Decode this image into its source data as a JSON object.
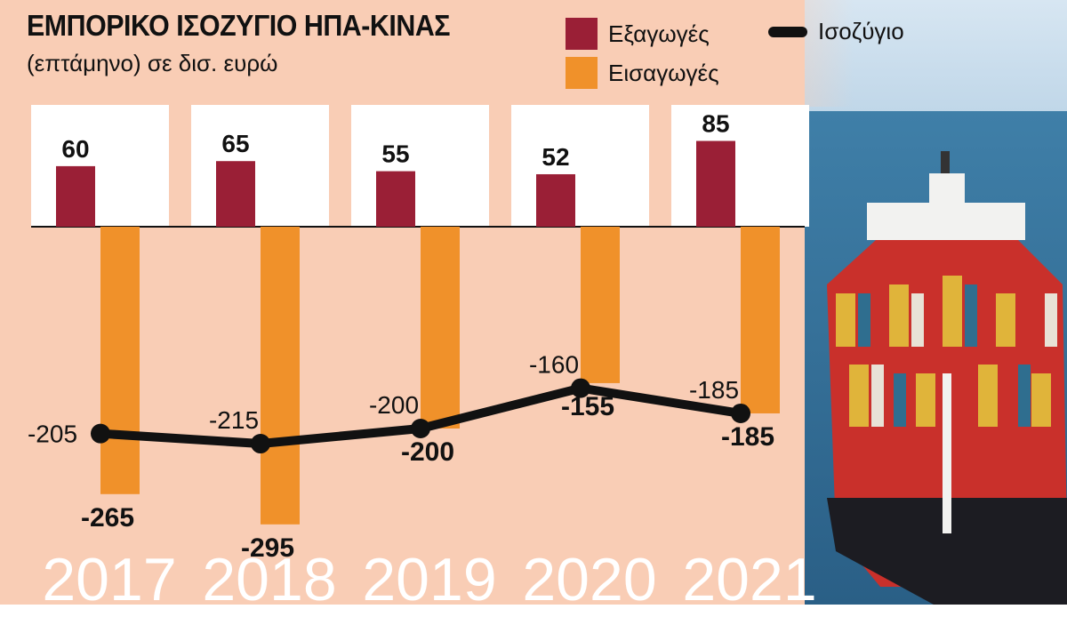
{
  "title": "ΕΜΠΟΡΙΚΟ ΙΣΟΖΥΓΙΟ ΗΠΑ-ΚΙΝΑΣ",
  "subtitle": "(επτάμηνο) σε δισ. ευρώ",
  "colors": {
    "background": "#f9cdb5",
    "exports": "#9a1f36",
    "imports": "#f0912a",
    "balance": "#111111",
    "year_text": "#ffffff"
  },
  "chart_data": {
    "type": "bar",
    "title": "ΕΜΠΟΡΙΚΟ ΙΣΟΖΥΓΙΟ ΗΠΑ-ΚΙΝΑΣ",
    "subtitle": "(επτάμηνο) σε δισ. ευρώ",
    "categories": [
      "2017",
      "2018",
      "2019",
      "2020",
      "2021"
    ],
    "series": [
      {
        "name": "Εξαγωγές",
        "type": "bar",
        "values": [
          60,
          65,
          55,
          52,
          85
        ],
        "labels": [
          "60",
          "65",
          "55",
          "52",
          "85"
        ]
      },
      {
        "name": "Εισαγωγές",
        "type": "bar",
        "values": [
          -265,
          -295,
          -200,
          -155,
          -185
        ],
        "labels": [
          "-265",
          "-295",
          "-200",
          "-155",
          "-185"
        ]
      },
      {
        "name": "Ισοζύγιο",
        "type": "line",
        "values": [
          -205,
          -215,
          -200,
          -160,
          -185
        ],
        "labels": [
          "-205",
          "-215",
          "-200",
          "-160",
          "-185"
        ]
      }
    ],
    "legend": [
      "Εξαγωγές",
      "Ισοζύγιο",
      "Εισαγωγές"
    ],
    "legend_position": "top-right"
  },
  "image": {
    "description_icon": "container-ship-photo"
  }
}
